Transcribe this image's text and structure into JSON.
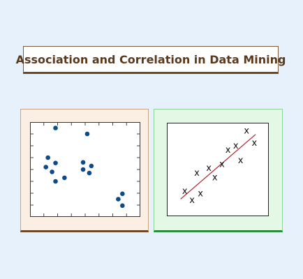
{
  "title": "Association and Correlation in Data Mining",
  "colors": {
    "background": "#e6f1fc",
    "left_panel_fill": "#fbeee2",
    "right_panel_fill": "#e4f8e6",
    "dot": "#0d4a8a",
    "trend_line": "#b02030",
    "title_text": "#5a3a1e"
  },
  "left_scatter": {
    "marker": "dot",
    "points": [
      [
        1.85,
        7.5
      ],
      [
        1.3,
        5.0
      ],
      [
        1.85,
        4.55
      ],
      [
        1.15,
        4.2
      ],
      [
        1.6,
        3.8
      ],
      [
        2.5,
        3.3
      ],
      [
        1.85,
        3.0
      ],
      [
        4.15,
        7.0
      ],
      [
        3.85,
        4.6
      ],
      [
        3.85,
        4.0
      ],
      [
        4.45,
        4.3
      ],
      [
        4.3,
        3.7
      ],
      [
        6.4,
        1.5
      ],
      [
        6.7,
        1.95
      ],
      [
        6.7,
        0.95
      ]
    ]
  },
  "right_scatter": {
    "marker": "x",
    "marker_label": "x",
    "trend_line": {
      "present": true
    },
    "points": [
      [
        1.5,
        2.3
      ],
      [
        2.1,
        1.5
      ],
      [
        2.5,
        3.95
      ],
      [
        2.8,
        2.1
      ],
      [
        3.5,
        4.4
      ],
      [
        4.0,
        3.55
      ],
      [
        4.6,
        4.75
      ],
      [
        5.1,
        6.05
      ],
      [
        5.75,
        6.45
      ],
      [
        6.15,
        5.1
      ],
      [
        6.65,
        7.8
      ],
      [
        7.3,
        6.7
      ]
    ]
  }
}
